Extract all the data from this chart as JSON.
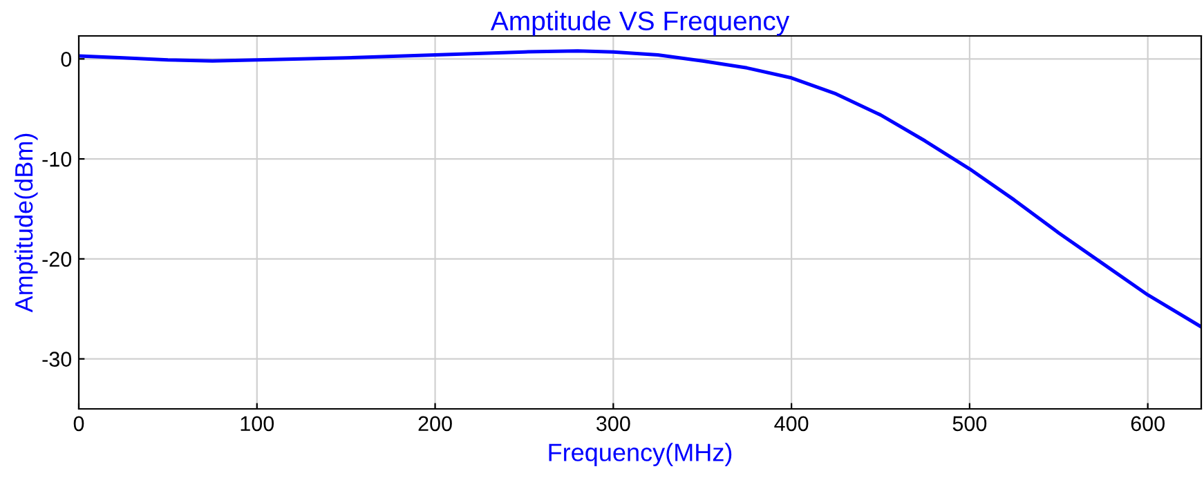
{
  "chart_data": {
    "type": "line",
    "title": "Amptitude VS Frequency",
    "xlabel": "Frequency(MHz)",
    "ylabel": "Amptitude(dBm)",
    "series": [
      {
        "color": "#0000ff",
        "x": [
          0,
          25,
          50,
          75,
          100,
          150,
          200,
          250,
          280,
          300,
          325,
          350,
          375,
          400,
          425,
          450,
          475,
          500,
          525,
          550,
          575,
          600,
          630
        ],
        "values": [
          0.3,
          0.1,
          -0.1,
          -0.2,
          -0.1,
          0.1,
          0.4,
          0.7,
          0.8,
          0.7,
          0.4,
          -0.2,
          -0.9,
          -1.9,
          -3.5,
          -5.6,
          -8.2,
          -11.0,
          -14.1,
          -17.4,
          -20.5,
          -23.6,
          -26.8
        ]
      }
    ],
    "xlim": [
      0,
      630
    ],
    "xticks": [
      0,
      100,
      200,
      300,
      400,
      500,
      600
    ],
    "ylim": [
      -35,
      2.3
    ],
    "yticks": [
      -30,
      -20,
      -10,
      0
    ],
    "grid": true,
    "line_style": "solid",
    "marker": "none"
  }
}
